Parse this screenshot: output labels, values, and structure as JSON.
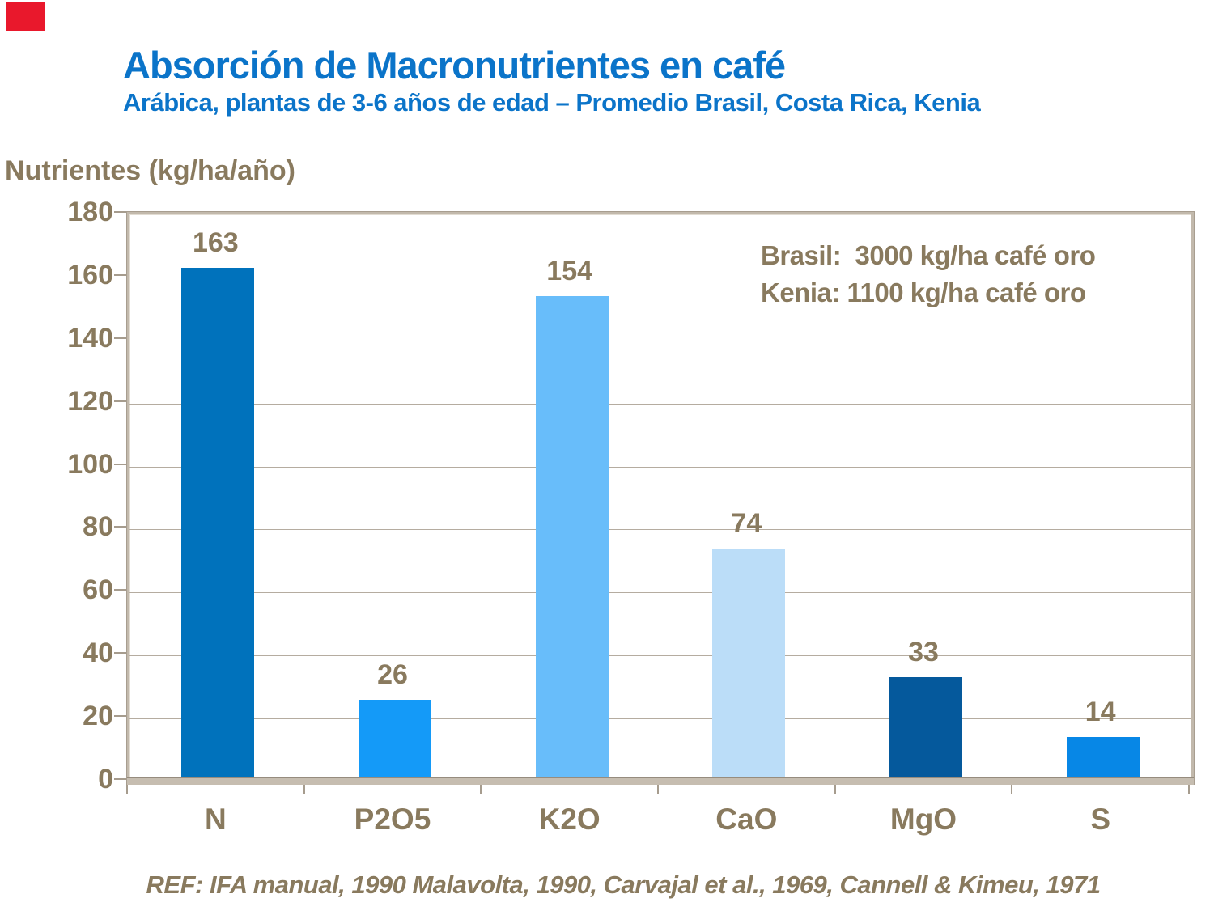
{
  "logo": {
    "color": "#E9182C"
  },
  "header": {
    "title": "Absorción de Macronutrientes en café",
    "subtitle": "Arábica, plantas de 3-6 años de edad – Promedio Brasil, Costa Rica, Kenia",
    "color": "#0B74C9"
  },
  "axis_title": "Nutrientes (kg/ha/año)",
  "annotation": {
    "line1": "Brasil:  3000 kg/ha café oro",
    "line2": "Kenia: 1100 kg/ha café oro"
  },
  "footer": {
    "text": "REF: IFA manual, 1990 Malavolta, 1990, Carvajal et al., 1969, Cannell & Kimeu,  1971"
  },
  "chart_data": {
    "type": "bar",
    "title": "Absorción de Macronutrientes en café",
    "subtitle": "Arábica, plantas de 3-6 años de edad – Promedio Brasil, Costa Rica, Kenia",
    "categories": [
      "N",
      "P2O5",
      "K2O",
      "CaO",
      "MgO",
      "S"
    ],
    "values": [
      163,
      26,
      154,
      74,
      33,
      14
    ],
    "bar_colors": [
      "#0072BC",
      "#149AF8",
      "#68BDFA",
      "#BBDDF8",
      "#05599C",
      "#0787E6"
    ],
    "xlabel": "",
    "ylabel": "Nutrientes (kg/ha/año)",
    "ylim": [
      0,
      180
    ],
    "ytick_step": 20,
    "yticks": [
      0,
      20,
      40,
      60,
      80,
      100,
      120,
      140,
      160,
      180
    ],
    "grid": true,
    "legend": false,
    "value_labels_shown": true,
    "text_color": "#897A5E",
    "grid_color": "#B5ACA0",
    "axis_color": "#A69C8E",
    "frame_color": "#C2B9AC"
  }
}
